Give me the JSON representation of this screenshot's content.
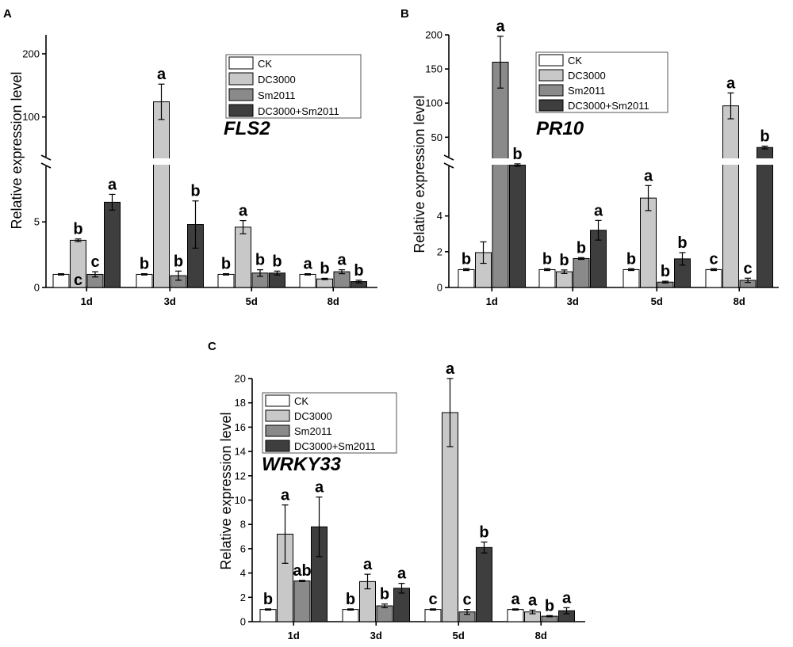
{
  "figure": {
    "ylabel": "Relative expression level",
    "series": [
      {
        "name": "CK",
        "color": "#ffffff"
      },
      {
        "name": "DC3000",
        "color": "#c8c8c8"
      },
      {
        "name": "Sm2011",
        "color": "#8a8a8a"
      },
      {
        "name": "DC3000+Sm2011",
        "color": "#3e3e3e"
      }
    ],
    "categories": [
      "1d",
      "3d",
      "5d",
      "8d"
    ]
  },
  "chart_data": [
    {
      "panel": "A",
      "gene": "FLS2",
      "type": "bar",
      "xlabel": "",
      "ylabel": "Relative expression level",
      "axis_break": true,
      "lower_ylim": [
        0,
        9
      ],
      "lower_ticks": [
        0,
        5
      ],
      "upper_ylim": [
        42,
        230
      ],
      "upper_ticks": [
        100,
        200
      ],
      "categories": [
        "1d",
        "3d",
        "5d",
        "8d"
      ],
      "legend": [
        "CK",
        "DC3000",
        "Sm2011",
        "DC3000+Sm2011"
      ],
      "series": [
        {
          "name": "CK",
          "values": [
            1.0,
            1.0,
            1.0,
            1.0
          ],
          "errors": [
            0.05,
            0.05,
            0.05,
            0.05
          ],
          "letters": [
            "",
            "b",
            "b",
            "a"
          ]
        },
        {
          "name": "DC3000",
          "values": [
            3.6,
            124,
            4.6,
            0.65
          ],
          "errors": [
            0.1,
            28,
            0.5,
            0.05
          ],
          "letters": [
            "b",
            "a",
            "a",
            "b"
          ]
        },
        {
          "name": "Sm2011",
          "values": [
            1.0,
            0.9,
            1.1,
            1.2
          ],
          "errors": [
            0.2,
            0.35,
            0.25,
            0.15
          ],
          "letters": [
            "c",
            "b",
            "b",
            "a"
          ]
        },
        {
          "name": "DC3000+Sm2011",
          "values": [
            6.5,
            4.8,
            1.1,
            0.45
          ],
          "errors": [
            0.6,
            1.8,
            0.15,
            0.1
          ],
          "letters": [
            "a",
            "b",
            "b",
            "b"
          ]
        }
      ],
      "extra_letters": [
        {
          "text": "c",
          "category": "1d"
        }
      ]
    },
    {
      "panel": "B",
      "gene": "PR10",
      "type": "bar",
      "xlabel": "",
      "ylabel": "Relative expression level",
      "axis_break": true,
      "lower_ylim": [
        0,
        6.6
      ],
      "lower_ticks": [
        0,
        2,
        4
      ],
      "upper_ylim": [
        26,
        200
      ],
      "upper_ticks": [
        50,
        100,
        150,
        200
      ],
      "categories": [
        "1d",
        "3d",
        "5d",
        "8d"
      ],
      "legend": [
        "CK",
        "DC3000",
        "Sm2011",
        "DC3000+Sm2011"
      ],
      "series": [
        {
          "name": "CK",
          "values": [
            1.0,
            1.0,
            1.0,
            1.0
          ],
          "errors": [
            0.05,
            0.05,
            0.05,
            0.05
          ],
          "letters": [
            "b",
            "b",
            "b",
            "c"
          ]
        },
        {
          "name": "DC3000",
          "values": [
            1.95,
            0.88,
            5.0,
            96
          ],
          "errors": [
            0.6,
            0.1,
            0.7,
            19
          ],
          "letters": [
            "",
            "b",
            "a",
            "a"
          ]
        },
        {
          "name": "Sm2011",
          "values": [
            160,
            1.62,
            0.3,
            0.4
          ],
          "errors": [
            38,
            0.05,
            0.05,
            0.12
          ],
          "letters": [
            "a",
            "b",
            "b",
            "c"
          ]
        },
        {
          "name": "DC3000+Sm2011",
          "values": [
            12,
            3.2,
            1.6,
            35
          ],
          "errors": [
            1.5,
            0.55,
            0.35,
            2
          ],
          "letters": [
            "b",
            "a",
            "b",
            "b"
          ]
        }
      ]
    },
    {
      "panel": "C",
      "gene": "WRKY33",
      "type": "bar",
      "xlabel": "",
      "ylabel": "Relative expression level",
      "axis_break": false,
      "ylim": [
        0,
        20
      ],
      "ticks": [
        0,
        2,
        4,
        6,
        8,
        10,
        12,
        14,
        16,
        18,
        20
      ],
      "categories": [
        "1d",
        "3d",
        "5d",
        "8d"
      ],
      "legend": [
        "CK",
        "DC3000",
        "Sm2011",
        "DC3000+Sm2011"
      ],
      "series": [
        {
          "name": "CK",
          "values": [
            1.0,
            1.0,
            1.0,
            1.0
          ],
          "errors": [
            0.05,
            0.05,
            0.05,
            0.05
          ],
          "letters": [
            "b",
            "b",
            "c",
            "a"
          ]
        },
        {
          "name": "DC3000",
          "values": [
            7.2,
            3.3,
            17.2,
            0.8
          ],
          "errors": [
            2.4,
            0.6,
            2.8,
            0.15
          ],
          "letters": [
            "a",
            "a",
            "a",
            "a"
          ]
        },
        {
          "name": "Sm2011",
          "values": [
            3.35,
            1.3,
            0.8,
            0.45
          ],
          "errors": [
            0.05,
            0.15,
            0.2,
            0.05
          ],
          "letters": [
            "ab",
            "b",
            "c",
            "b"
          ]
        },
        {
          "name": "DC3000+Sm2011",
          "values": [
            7.8,
            2.75,
            6.1,
            0.9
          ],
          "errors": [
            2.45,
            0.4,
            0.45,
            0.25
          ],
          "letters": [
            "a",
            "a",
            "b",
            "a"
          ]
        }
      ]
    }
  ]
}
